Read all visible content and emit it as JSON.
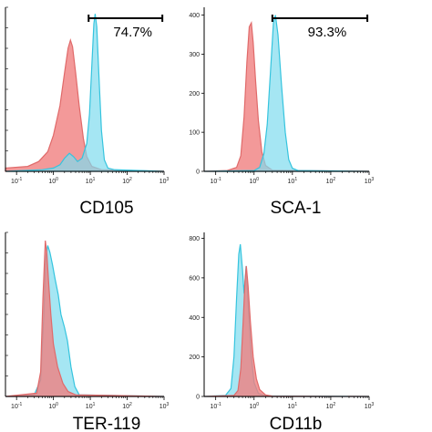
{
  "colors": {
    "control_fill": "#f08080",
    "control_fill_opacity": 0.8,
    "stain_fill": "#7fdcee",
    "stain_fill_opacity": 0.7,
    "control_stroke": "#e06a6a",
    "stain_stroke": "#35c4de",
    "overlap_hint": "#7f8fb0"
  },
  "chart_data": [
    {
      "type": "area",
      "panel": "top-left",
      "xlabel": "CD105",
      "xscale": "log",
      "xlim": [
        0.05,
        1000
      ],
      "x_tick_labels": [
        "10^-1",
        "10^0",
        "10^1",
        "10^2",
        "10^3"
      ],
      "y_tick_labels": [],
      "ylim": [
        0,
        100
      ],
      "gate": {
        "from": 9,
        "to": 900,
        "label": "74.7%"
      },
      "series": [
        {
          "role": "control",
          "points": [
            [
              0.05,
              2
            ],
            [
              0.2,
              3
            ],
            [
              0.4,
              6
            ],
            [
              0.7,
              12
            ],
            [
              1.0,
              22
            ],
            [
              1.5,
              40
            ],
            [
              2.0,
              60
            ],
            [
              2.5,
              75
            ],
            [
              2.9,
              80
            ],
            [
              3.3,
              76
            ],
            [
              4.0,
              60
            ],
            [
              5.0,
              40
            ],
            [
              6.5,
              20
            ],
            [
              8.0,
              9
            ],
            [
              11,
              3
            ],
            [
              20,
              1
            ],
            [
              1000,
              0
            ]
          ]
        },
        {
          "role": "stained",
          "points": [
            [
              0.05,
              0
            ],
            [
              0.5,
              1
            ],
            [
              1.0,
              2
            ],
            [
              1.5,
              4
            ],
            [
              2.0,
              8
            ],
            [
              2.7,
              11
            ],
            [
              3.5,
              9
            ],
            [
              4.5,
              6
            ],
            [
              6.0,
              8
            ],
            [
              8.0,
              17
            ],
            [
              9.5,
              35
            ],
            [
              11,
              65
            ],
            [
              12.5,
              90
            ],
            [
              13.5,
              96
            ],
            [
              15,
              88
            ],
            [
              17,
              60
            ],
            [
              20,
              25
            ],
            [
              24,
              7
            ],
            [
              30,
              2
            ],
            [
              45,
              1
            ],
            [
              1000,
              0
            ]
          ]
        }
      ]
    },
    {
      "type": "area",
      "panel": "top-right",
      "xlabel": "SCA-1",
      "xscale": "log",
      "xlim": [
        0.05,
        1000
      ],
      "x_tick_labels": [
        "10^-1",
        "10^0",
        "10^1",
        "10^2",
        "10^3"
      ],
      "y_tick_labels": [
        "0",
        "100",
        "200",
        "300",
        "400"
      ],
      "ylim": [
        0,
        420
      ],
      "gate": {
        "from": 3,
        "to": 900,
        "label": "93.3%"
      },
      "series": [
        {
          "role": "control",
          "points": [
            [
              0.05,
              0
            ],
            [
              0.2,
              2
            ],
            [
              0.35,
              10
            ],
            [
              0.45,
              40
            ],
            [
              0.55,
              140
            ],
            [
              0.65,
              280
            ],
            [
              0.75,
              370
            ],
            [
              0.85,
              380
            ],
            [
              0.95,
              330
            ],
            [
              1.1,
              230
            ],
            [
              1.3,
              130
            ],
            [
              1.6,
              50
            ],
            [
              2.0,
              15
            ],
            [
              3.0,
              3
            ],
            [
              1000,
              0
            ]
          ]
        },
        {
          "role": "stained",
          "points": [
            [
              0.05,
              0
            ],
            [
              1.0,
              2
            ],
            [
              1.4,
              10
            ],
            [
              1.8,
              45
            ],
            [
              2.2,
              120
            ],
            [
              2.7,
              260
            ],
            [
              3.2,
              380
            ],
            [
              3.6,
              400
            ],
            [
              4.2,
              350
            ],
            [
              5.2,
              220
            ],
            [
              6.5,
              100
            ],
            [
              8.0,
              30
            ],
            [
              10,
              8
            ],
            [
              14,
              2
            ],
            [
              1000,
              0
            ]
          ]
        }
      ]
    },
    {
      "type": "area",
      "panel": "bottom-left",
      "xlabel": "TER-119",
      "xscale": "log",
      "xlim": [
        0.05,
        1000
      ],
      "x_tick_labels": [
        "10^-1",
        "10^0",
        "10^1",
        "10^2",
        "10^3"
      ],
      "y_tick_labels": [],
      "ylim": [
        0,
        100
      ],
      "series": [
        {
          "role": "stained",
          "points": [
            [
              0.05,
              0
            ],
            [
              0.3,
              1
            ],
            [
              0.45,
              10
            ],
            [
              0.55,
              50
            ],
            [
              0.62,
              85
            ],
            [
              0.7,
              92
            ],
            [
              0.8,
              88
            ],
            [
              0.95,
              80
            ],
            [
              1.1,
              72
            ],
            [
              1.35,
              62
            ],
            [
              1.6,
              50
            ],
            [
              2.0,
              42
            ],
            [
              2.4,
              34
            ],
            [
              3.0,
              18
            ],
            [
              3.8,
              6
            ],
            [
              5,
              1
            ],
            [
              1000,
              0
            ]
          ]
        },
        {
          "role": "control",
          "points": [
            [
              0.05,
              0
            ],
            [
              0.35,
              2
            ],
            [
              0.45,
              15
            ],
            [
              0.52,
              60
            ],
            [
              0.6,
              95
            ],
            [
              0.66,
              88
            ],
            [
              0.74,
              70
            ],
            [
              0.85,
              50
            ],
            [
              1.0,
              32
            ],
            [
              1.3,
              18
            ],
            [
              1.8,
              8
            ],
            [
              2.5,
              3
            ],
            [
              4,
              1
            ],
            [
              1000,
              0
            ]
          ]
        }
      ]
    },
    {
      "type": "area",
      "panel": "bottom-right",
      "xlabel": "CD11b",
      "xscale": "log",
      "xlim": [
        0.05,
        1000
      ],
      "x_tick_labels": [
        "10^-1",
        "10^0",
        "10^1",
        "10^2",
        "10^3"
      ],
      "y_tick_labels": [
        "0",
        "200",
        "400",
        "600",
        "800"
      ],
      "ylim": [
        0,
        830
      ],
      "series": [
        {
          "role": "stained",
          "points": [
            [
              0.05,
              0
            ],
            [
              0.18,
              5
            ],
            [
              0.25,
              40
            ],
            [
              0.3,
              200
            ],
            [
              0.35,
              500
            ],
            [
              0.4,
              720
            ],
            [
              0.44,
              770
            ],
            [
              0.5,
              640
            ],
            [
              0.55,
              520
            ],
            [
              0.62,
              660
            ],
            [
              0.7,
              470
            ],
            [
              0.85,
              200
            ],
            [
              1.0,
              70
            ],
            [
              1.3,
              15
            ],
            [
              2,
              3
            ],
            [
              1000,
              0
            ]
          ]
        },
        {
          "role": "control",
          "points": [
            [
              0.05,
              0
            ],
            [
              0.3,
              5
            ],
            [
              0.38,
              30
            ],
            [
              0.45,
              140
            ],
            [
              0.52,
              380
            ],
            [
              0.58,
              580
            ],
            [
              0.63,
              660
            ],
            [
              0.7,
              560
            ],
            [
              0.8,
              380
            ],
            [
              0.95,
              200
            ],
            [
              1.15,
              90
            ],
            [
              1.4,
              35
            ],
            [
              2.0,
              8
            ],
            [
              3,
              2
            ],
            [
              1000,
              0
            ]
          ]
        }
      ]
    }
  ]
}
